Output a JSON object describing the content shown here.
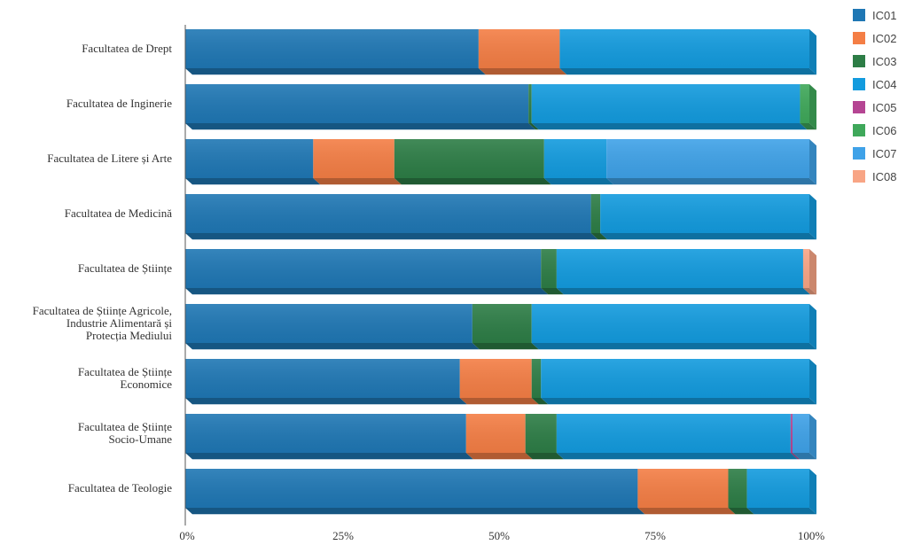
{
  "chart_data": {
    "type": "bar",
    "orientation": "horizontal",
    "stacked": true,
    "percent": true,
    "title": "",
    "xlabel": "",
    "ylabel": "",
    "xlim": [
      0,
      100
    ],
    "x_ticks": [
      "0%",
      "25%",
      "50%",
      "75%",
      "100%"
    ],
    "grid": false,
    "legend_position": "top-right",
    "categories": [
      "Facultatea de Drept",
      "Facultatea de Inginerie",
      "Facultatea de Litere și Arte",
      "Facultatea de Medicină",
      "Facultatea de Științe",
      "Facultatea de Științe Agricole, Industrie Alimentară și Protecția Mediului",
      "Facultatea de Științe Economice",
      "Facultatea de Științe Socio-Umane",
      "Facultatea de Teologie"
    ],
    "category_lines": [
      [
        "Facultatea de Drept"
      ],
      [
        "Facultatea de Inginerie"
      ],
      [
        "Facultatea de Litere și Arte"
      ],
      [
        "Facultatea de Medicină"
      ],
      [
        "Facultatea de Științe"
      ],
      [
        "Facultatea de Științe Agricole,",
        "Industrie Alimentară și",
        "Protecția Mediului"
      ],
      [
        "Facultatea de Științe",
        "Economice"
      ],
      [
        "Facultatea de Științe",
        "Socio-Umane"
      ],
      [
        "Facultatea de Teologie"
      ]
    ],
    "series": [
      {
        "name": "IC01",
        "color": "#1f77b4",
        "values": [
          47,
          55,
          20.5,
          65,
          57,
          46,
          44,
          45,
          72.5
        ]
      },
      {
        "name": "IC02",
        "color": "#f47e45",
        "values": [
          13,
          0,
          13,
          0,
          0,
          0,
          11.5,
          9.5,
          14.5
        ]
      },
      {
        "name": "IC03",
        "color": "#2d7d46",
        "values": [
          0,
          0.5,
          24,
          1.5,
          2.5,
          9.5,
          1.5,
          5,
          3
        ]
      },
      {
        "name": "IC04",
        "color": "#139bde",
        "values": [
          40,
          43,
          10,
          33.5,
          39.5,
          44.5,
          43,
          37.5,
          10
        ]
      },
      {
        "name": "IC05",
        "color": "#b54593",
        "values": [
          0,
          0,
          0,
          0,
          0,
          0,
          0,
          0.3,
          0
        ]
      },
      {
        "name": "IC06",
        "color": "#3fa85a",
        "values": [
          0,
          1.5,
          0,
          0,
          0,
          0,
          0,
          0,
          0
        ]
      },
      {
        "name": "IC07",
        "color": "#3fa2e8",
        "values": [
          0,
          0,
          32.5,
          0,
          0,
          0,
          0,
          2.7,
          0
        ]
      },
      {
        "name": "IC08",
        "color": "#f8a585",
        "values": [
          0,
          0,
          0,
          0,
          1,
          0,
          0,
          0,
          0
        ]
      }
    ]
  }
}
